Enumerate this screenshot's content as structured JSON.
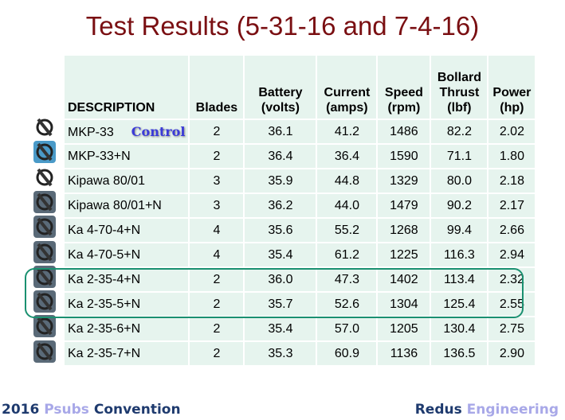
{
  "title": "Test Results (5-31-16 and 7-4-16)",
  "headers": [
    "DESCRIPTION",
    "Blades",
    "Battery (volts)",
    "Current (amps)",
    "Speed (rpm)",
    "Bollard Thrust (lbf)",
    "Power (hp)"
  ],
  "control_label": "Control",
  "rows": [
    [
      "MKP-33",
      "2",
      "36.1",
      "41.2",
      "1486",
      "82.2",
      "2.02"
    ],
    [
      "MKP-33+N",
      "2",
      "36.4",
      "36.4",
      "1590",
      "71.1",
      "1.80"
    ],
    [
      "Kipawa 80/01",
      "3",
      "35.9",
      "44.8",
      "1329",
      "80.0",
      "2.18"
    ],
    [
      "Kipawa 80/01+N",
      "3",
      "36.2",
      "44.0",
      "1479",
      "90.2",
      "2.17"
    ],
    [
      "Ka 4-70-4+N",
      "4",
      "35.6",
      "55.2",
      "1268",
      "99.4",
      "2.66"
    ],
    [
      "Ka 4-70-5+N",
      "4",
      "35.4",
      "61.2",
      "1225",
      "116.3",
      "2.94"
    ],
    [
      "Ka 2-35-4+N",
      "2",
      "36.0",
      "47.3",
      "1402",
      "113.4",
      "2.32"
    ],
    [
      "Ka 2-35-5+N",
      "2",
      "35.7",
      "52.6",
      "1304",
      "125.4",
      "2.55"
    ],
    [
      "Ka 2-35-6+N",
      "2",
      "35.4",
      "57.0",
      "1205",
      "130.4",
      "2.75"
    ],
    [
      "Ka 2-35-7+N",
      "2",
      "35.3",
      "60.9",
      "1136",
      "136.5",
      "2.90"
    ]
  ],
  "highlighted_rows": [
    "Ka 2-35-4+N",
    "Ka 2-35-5+N"
  ],
  "footer": {
    "left": [
      "2016",
      "Psubs",
      "Convention"
    ],
    "right": [
      "Redus",
      "Engineering"
    ]
  },
  "colors": {
    "title": "#7a0f12",
    "cell": "#e6f4ee",
    "highlight": "#1a9070",
    "footer_dark": "#1e3a6e",
    "footer_light": "#a8a8e8"
  }
}
